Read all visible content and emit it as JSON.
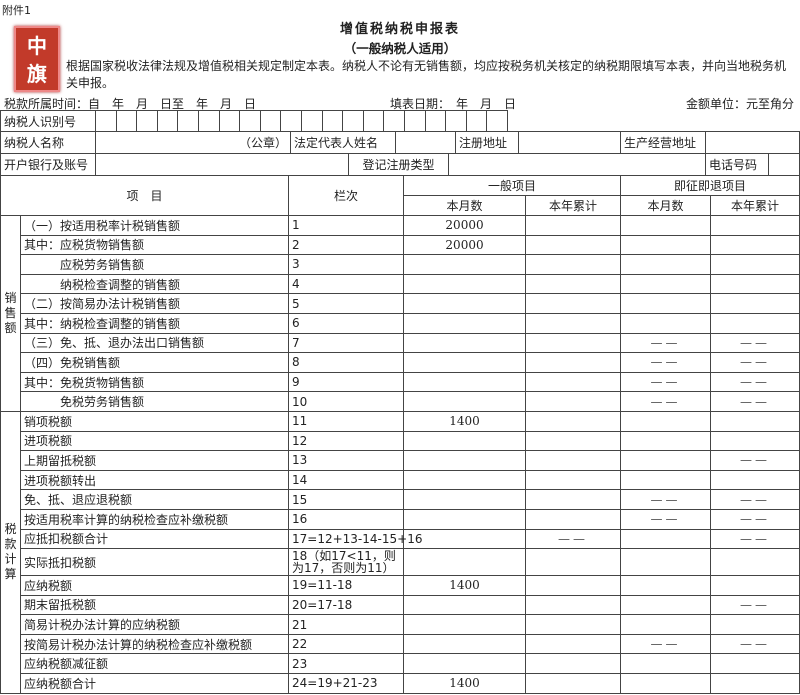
{
  "header": {
    "attachment": "附件1",
    "title": "增值税纳税申报表",
    "subtitle": "（一般纳税人适用）",
    "intro": "根据国家税收法律法规及增值税相关规定制定本表。纳税人不论有无销售额，均应按税务机关核定的纳税期限填写本表，并向当地税务机关申报。",
    "stamp_text": "中旗",
    "period": "税款所属时间：自　年　月　日至　年　月　日",
    "fill_date": "填表日期：　年　月　日",
    "unit": "金额单位：元至角分"
  },
  "info": {
    "taxpayer_id": "纳税人识别号",
    "taxpayer_name": "纳税人名称",
    "seal": "（公章）",
    "legal_rep": "法定代表人姓名",
    "reg_address": "注册地址",
    "biz_address": "生产经营地址",
    "bank_account": "开户银行及账号",
    "reg_type": "登记注册类型",
    "phone": "电话号码"
  },
  "table": {
    "col_item": "项　目",
    "col_line": "栏次",
    "group_general": "一般项目",
    "group_refund": "即征即退项目",
    "month": "本月数",
    "year": "本年累计",
    "cat_sales": "销售额",
    "cat_tax": "税款计算",
    "rows": [
      {
        "item": "（一）按适用税率计税销售额",
        "line": "1",
        "gm": "20000",
        "gy": "",
        "rm": "",
        "ry": ""
      },
      {
        "item": "其中：应税货物销售额",
        "line": "2",
        "gm": "20000",
        "gy": "",
        "rm": "",
        "ry": ""
      },
      {
        "item": "　　　应税劳务销售额",
        "line": "3",
        "gm": "",
        "gy": "",
        "rm": "",
        "ry": ""
      },
      {
        "item": "　　　纳税检查调整的销售额",
        "line": "4",
        "gm": "",
        "gy": "",
        "rm": "",
        "ry": ""
      },
      {
        "item": "（二）按简易办法计税销售额",
        "line": "5",
        "gm": "",
        "gy": "",
        "rm": "",
        "ry": ""
      },
      {
        "item": "其中：纳税检查调整的销售额",
        "line": "6",
        "gm": "",
        "gy": "",
        "rm": "",
        "ry": ""
      },
      {
        "item": "（三）免、抵、退办法出口销售额",
        "line": "7",
        "gm": "",
        "gy": "",
        "rm": "——",
        "ry": "——"
      },
      {
        "item": "（四）免税销售额",
        "line": "8",
        "gm": "",
        "gy": "",
        "rm": "——",
        "ry": "——"
      },
      {
        "item": "其中：免税货物销售额",
        "line": "9",
        "gm": "",
        "gy": "",
        "rm": "——",
        "ry": "——"
      },
      {
        "item": "　　　免税劳务销售额",
        "line": "10",
        "gm": "",
        "gy": "",
        "rm": "——",
        "ry": "——"
      },
      {
        "item": "销项税额",
        "line": "11",
        "gm": "1400",
        "gy": "",
        "rm": "",
        "ry": ""
      },
      {
        "item": "进项税额",
        "line": "12",
        "gm": "",
        "gy": "",
        "rm": "",
        "ry": ""
      },
      {
        "item": "上期留抵税额",
        "line": "13",
        "gm": "",
        "gy": "",
        "rm": "",
        "ry": "——"
      },
      {
        "item": "进项税额转出",
        "line": "14",
        "gm": "",
        "gy": "",
        "rm": "",
        "ry": ""
      },
      {
        "item": "免、抵、退应退税额",
        "line": "15",
        "gm": "",
        "gy": "",
        "rm": "——",
        "ry": "——"
      },
      {
        "item": "按适用税率计算的纳税检查应补缴税额",
        "line": "16",
        "gm": "",
        "gy": "",
        "rm": "——",
        "ry": "——"
      },
      {
        "item": "应抵扣税额合计",
        "line": "17=12+13-14-15+16",
        "gm": "",
        "gy": "——",
        "rm": "",
        "ry": "——"
      },
      {
        "item": "实际抵扣税额",
        "line": "18（如17<11，则为17，否则为11）",
        "gm": "",
        "gy": "",
        "rm": "",
        "ry": ""
      },
      {
        "item": "应纳税额",
        "line": "19=11-18",
        "gm": "1400",
        "gy": "",
        "rm": "",
        "ry": ""
      },
      {
        "item": "期末留抵税额",
        "line": "20=17-18",
        "gm": "",
        "gy": "",
        "rm": "",
        "ry": "——"
      },
      {
        "item": "简易计税办法计算的应纳税额",
        "line": "21",
        "gm": "",
        "gy": "",
        "rm": "",
        "ry": ""
      },
      {
        "item": "按简易计税办法计算的纳税检查应补缴税额",
        "line": "22",
        "gm": "",
        "gy": "",
        "rm": "——",
        "ry": "——"
      },
      {
        "item": "应纳税额减征额",
        "line": "23",
        "gm": "",
        "gy": "",
        "rm": "",
        "ry": ""
      },
      {
        "item": "应纳税额合计",
        "line": "24=19+21-23",
        "gm": "1400",
        "gy": "",
        "rm": "",
        "ry": ""
      }
    ]
  }
}
